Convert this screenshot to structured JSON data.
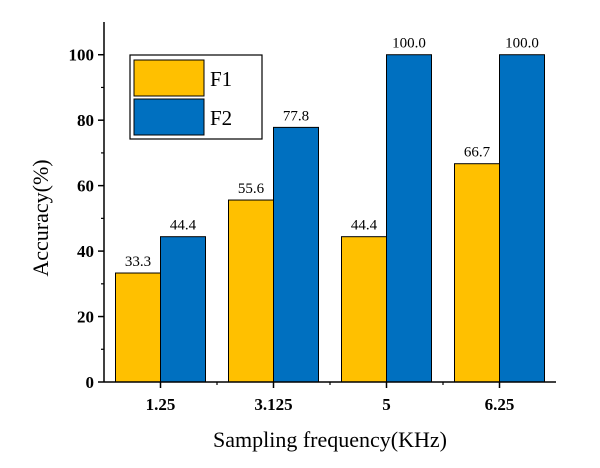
{
  "chart_data": {
    "type": "bar",
    "title": "",
    "xlabel": "Sampling frequency(KHz)",
    "ylabel": "Accuracy(%)",
    "ylim": [
      0,
      110
    ],
    "yticks": [
      0,
      20,
      40,
      60,
      80,
      100
    ],
    "ytick_labels": [
      "0",
      "20",
      "40",
      "60",
      "80",
      "100"
    ],
    "categories": [
      "1.25",
      "3.125",
      "5",
      "6.25"
    ],
    "series": [
      {
        "name": "F1",
        "color": "#FFC000",
        "values": [
          33.3,
          55.6,
          44.4,
          66.7
        ],
        "labels": [
          "33.3",
          "55.6",
          "44.4",
          "66.7"
        ]
      },
      {
        "name": "F2",
        "color": "#0070C0",
        "values": [
          44.4,
          77.8,
          100.0,
          100.0
        ],
        "labels": [
          "44.4",
          "77.8",
          "100.0",
          "100.0"
        ]
      }
    ],
    "legend": "top-left",
    "grid": false
  }
}
